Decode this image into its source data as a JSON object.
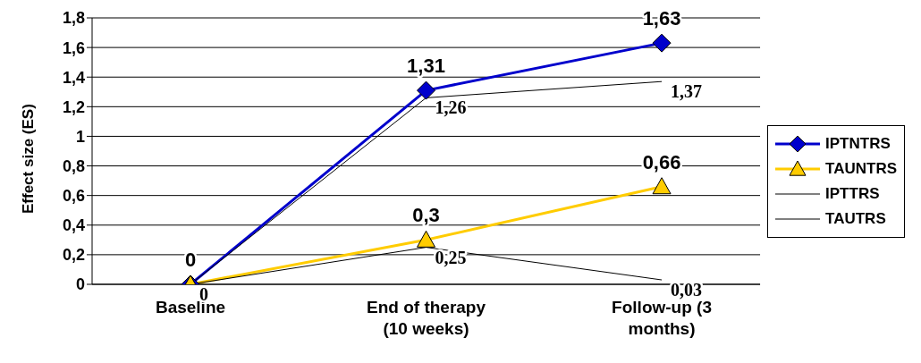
{
  "chart_data": {
    "type": "line",
    "ylabel": "Effect size (ES)",
    "categories": [
      "Baseline",
      "End of therapy (10 weeks)",
      "Follow-up (3 months)"
    ],
    "series": [
      {
        "name": "IPTNTRS",
        "color": "#0000cc",
        "marker": "diamond",
        "values": [
          0,
          1.31,
          1.63
        ],
        "value_labels": [
          "0",
          "1,31",
          "1,63"
        ]
      },
      {
        "name": "TAUNTRS",
        "color": "#ffcc00",
        "marker": "triangle",
        "values": [
          0,
          0.3,
          0.66
        ],
        "value_labels": [
          null,
          "0,3",
          "0,66"
        ]
      },
      {
        "name": "IPTTRS",
        "color": "#000000",
        "marker": "none",
        "values": [
          0,
          1.26,
          1.37
        ],
        "value_labels": [
          null,
          "1,26",
          "1,37"
        ]
      },
      {
        "name": "TAUTRS",
        "color": "#000000",
        "marker": "none",
        "values": [
          0,
          0.25,
          0.03
        ],
        "value_labels": [
          "0",
          "0,25",
          "0,03"
        ]
      }
    ],
    "ylim": [
      0,
      1.8
    ],
    "yticks": [
      0,
      {
        "value": 0.2,
        "label": "0,2"
      },
      {
        "value": 0.4,
        "label": "0,4"
      },
      {
        "value": 0.6,
        "label": "0,6"
      },
      {
        "value": 0.8,
        "label": "0,8"
      },
      1,
      {
        "value": 1.2,
        "label": "1,2"
      },
      {
        "value": 1.4,
        "label": "1,4"
      },
      {
        "value": 1.6,
        "label": "1,6"
      },
      {
        "value": 1.8,
        "label": "1,8"
      }
    ],
    "grid": "y",
    "legend": "right"
  }
}
